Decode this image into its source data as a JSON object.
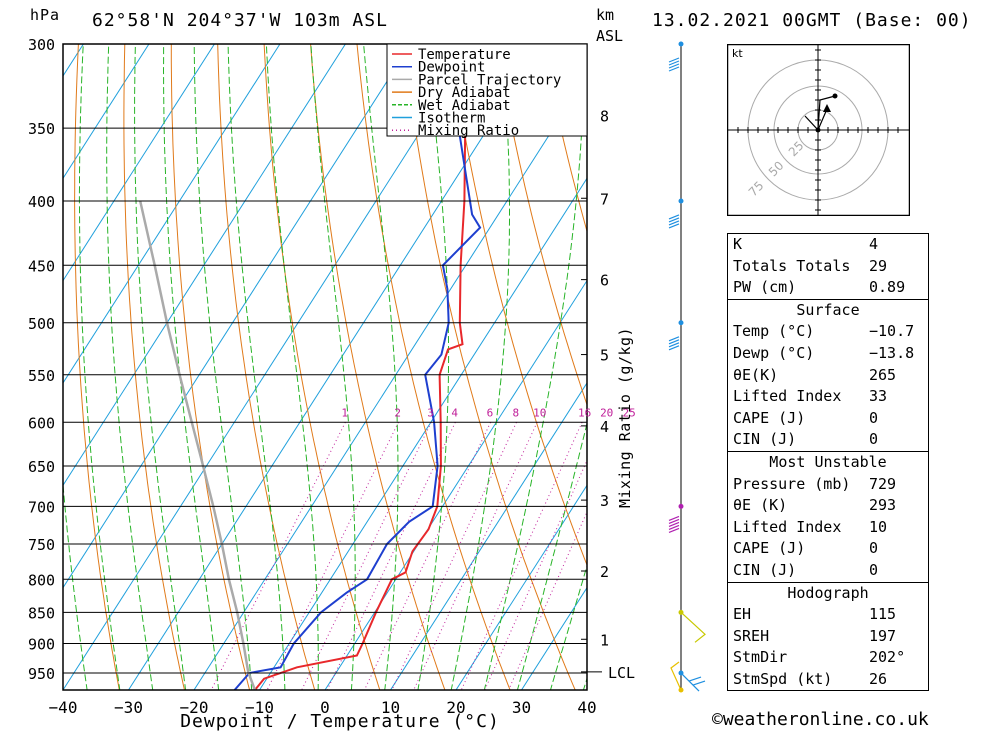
{
  "header": {
    "pressure_unit": "hPa",
    "location": "62°58'N  204°37'W  103m  ASL",
    "height_unit_km": "km",
    "height_unit_asl": "ASL",
    "datetime": "13.02.2021  00GMT  (Base: 00)"
  },
  "chart_data": {
    "type": "line",
    "subtype": "skew-T log-P diagram",
    "xlabel": "Dewpoint / Temperature (°C)",
    "ylabel": "hPa",
    "secondary_ylabel": "Mixing Ratio (g/kg)",
    "xlim": [
      -40,
      40
    ],
    "ylim": [
      980,
      300
    ],
    "x_ticks": [
      -40,
      -30,
      -20,
      -10,
      0,
      10,
      20,
      30,
      40
    ],
    "x_tick_labels": [
      "−40",
      "−30",
      "−20",
      "−10",
      "0",
      "10",
      "20",
      "30",
      "40"
    ],
    "pressure_levels": [
      300,
      350,
      400,
      450,
      500,
      550,
      600,
      650,
      700,
      750,
      800,
      850,
      900,
      950
    ],
    "height_km_ticks": [
      {
        "label": "8",
        "p": 342
      },
      {
        "label": "7",
        "p": 398
      },
      {
        "label": "6",
        "p": 462
      },
      {
        "label": "5",
        "p": 530
      },
      {
        "label": "4",
        "p": 604
      },
      {
        "label": "3",
        "p": 692
      },
      {
        "label": "2",
        "p": 788
      },
      {
        "label": "1",
        "p": 893
      }
    ],
    "lcl": {
      "label": "LCL",
      "p": 948
    },
    "mixing_ratio_labels": [
      "1",
      "2",
      "3",
      "4",
      "6",
      "8",
      "10",
      "16",
      "20",
      "25"
    ],
    "legend": {
      "placement": "top-right",
      "entries": [
        {
          "name": "Temperature",
          "color": "#e8282b"
        },
        {
          "name": "Dewpoint",
          "color": "#1e3fcf"
        },
        {
          "name": "Parcel Trajectory",
          "color": "#aaaaaa"
        },
        {
          "name": "Dry Adiabat",
          "color": "#e07a1a"
        },
        {
          "name": "Wet Adiabat",
          "color": "#28b428"
        },
        {
          "name": "Isotherm",
          "color": "#20a0dc"
        },
        {
          "name": "Mixing Ratio",
          "color": "#c0209a"
        }
      ]
    },
    "series": [
      {
        "name": "Temperature",
        "points": [
          {
            "p": 980,
            "t": -10.7
          },
          {
            "p": 960,
            "t": -10.4
          },
          {
            "p": 940,
            "t": -6.5
          },
          {
            "p": 920,
            "t": 1.5
          },
          {
            "p": 900,
            "t": 1.2
          },
          {
            "p": 850,
            "t": 0.2
          },
          {
            "p": 800,
            "t": -0.6
          },
          {
            "p": 790,
            "t": 0.8
          },
          {
            "p": 760,
            "t": -0.2
          },
          {
            "p": 730,
            "t": 0.1
          },
          {
            "p": 700,
            "t": -0.8
          },
          {
            "p": 650,
            "t": -4.2
          },
          {
            "p": 600,
            "t": -8.5
          },
          {
            "p": 550,
            "t": -13.3
          },
          {
            "p": 525,
            "t": -14.5
          },
          {
            "p": 520,
            "t": -12.8
          },
          {
            "p": 500,
            "t": -15.3
          },
          {
            "p": 450,
            "t": -20.8
          },
          {
            "p": 400,
            "t": -26.5
          },
          {
            "p": 350,
            "t": -33.5
          },
          {
            "p": 300,
            "t": -42.0
          }
        ]
      },
      {
        "name": "Dewpoint",
        "points": [
          {
            "p": 980,
            "t": -13.8
          },
          {
            "p": 950,
            "t": -13.2
          },
          {
            "p": 940,
            "t": -9.0
          },
          {
            "p": 900,
            "t": -9.3
          },
          {
            "p": 850,
            "t": -8.2
          },
          {
            "p": 820,
            "t": -6.2
          },
          {
            "p": 800,
            "t": -4.4
          },
          {
            "p": 750,
            "t": -4.8
          },
          {
            "p": 720,
            "t": -3.6
          },
          {
            "p": 700,
            "t": -1.5
          },
          {
            "p": 650,
            "t": -4.7
          },
          {
            "p": 600,
            "t": -9.5
          },
          {
            "p": 550,
            "t": -15.5
          },
          {
            "p": 530,
            "t": -15.0
          },
          {
            "p": 500,
            "t": -17.0
          },
          {
            "p": 470,
            "t": -20.5
          },
          {
            "p": 450,
            "t": -23.5
          },
          {
            "p": 420,
            "t": -21.5
          },
          {
            "p": 410,
            "t": -24.0
          },
          {
            "p": 350,
            "t": -34.5
          },
          {
            "p": 325,
            "t": -38.5
          },
          {
            "p": 300,
            "t": -45.0
          }
        ]
      },
      {
        "name": "Parcel Trajectory",
        "points": [
          {
            "p": 980,
            "t": -10.7
          },
          {
            "p": 948,
            "t": -13.5
          },
          {
            "p": 900,
            "t": -17.0
          },
          {
            "p": 850,
            "t": -21.0
          },
          {
            "p": 800,
            "t": -25.5
          },
          {
            "p": 750,
            "t": -30.0
          },
          {
            "p": 700,
            "t": -35.0
          },
          {
            "p": 650,
            "t": -40.5
          },
          {
            "p": 600,
            "t": -46.5
          },
          {
            "p": 550,
            "t": -53.0
          },
          {
            "p": 500,
            "t": -60.0
          },
          {
            "p": 450,
            "t": -67.5
          },
          {
            "p": 400,
            "t": -76.0
          }
        ]
      }
    ],
    "wind_profile_colors": {
      "upper": "#1e8fe0",
      "mid": "#b020b0",
      "low": "#c8c800",
      "surface": "#e8c000"
    }
  },
  "hodograph": {
    "unit_label": "kt",
    "ring_labels": [
      "25",
      "50",
      "75"
    ]
  },
  "indices": {
    "general": [
      {
        "label": "K",
        "value": "4"
      },
      {
        "label": "Totals Totals",
        "value": "29"
      },
      {
        "label": "PW (cm)",
        "value": "0.89"
      }
    ],
    "surface": {
      "title": "Surface",
      "rows": [
        {
          "label": "Temp (°C)",
          "value": "−10.7"
        },
        {
          "label": "Dewp (°C)",
          "value": "−13.8"
        },
        {
          "label": "θE(K)",
          "value": "265"
        },
        {
          "label": "Lifted Index",
          "value": "33"
        },
        {
          "label": "CAPE (J)",
          "value": "0"
        },
        {
          "label": "CIN (J)",
          "value": "0"
        }
      ]
    },
    "most_unstable": {
      "title": "Most Unstable",
      "rows": [
        {
          "label": "Pressure (mb)",
          "value": "729"
        },
        {
          "label": "θE (K)",
          "value": "293"
        },
        {
          "label": "Lifted Index",
          "value": "10"
        },
        {
          "label": "CAPE (J)",
          "value": "0"
        },
        {
          "label": "CIN (J)",
          "value": "0"
        }
      ]
    },
    "hodograph": {
      "title": "Hodograph",
      "rows": [
        {
          "label": "EH",
          "value": "115"
        },
        {
          "label": "SREH",
          "value": "197"
        },
        {
          "label": "StmDir",
          "value": "202°"
        },
        {
          "label": "StmSpd (kt)",
          "value": "26"
        }
      ]
    }
  },
  "footer": {
    "copyright": "©weatheronline.co.uk"
  }
}
